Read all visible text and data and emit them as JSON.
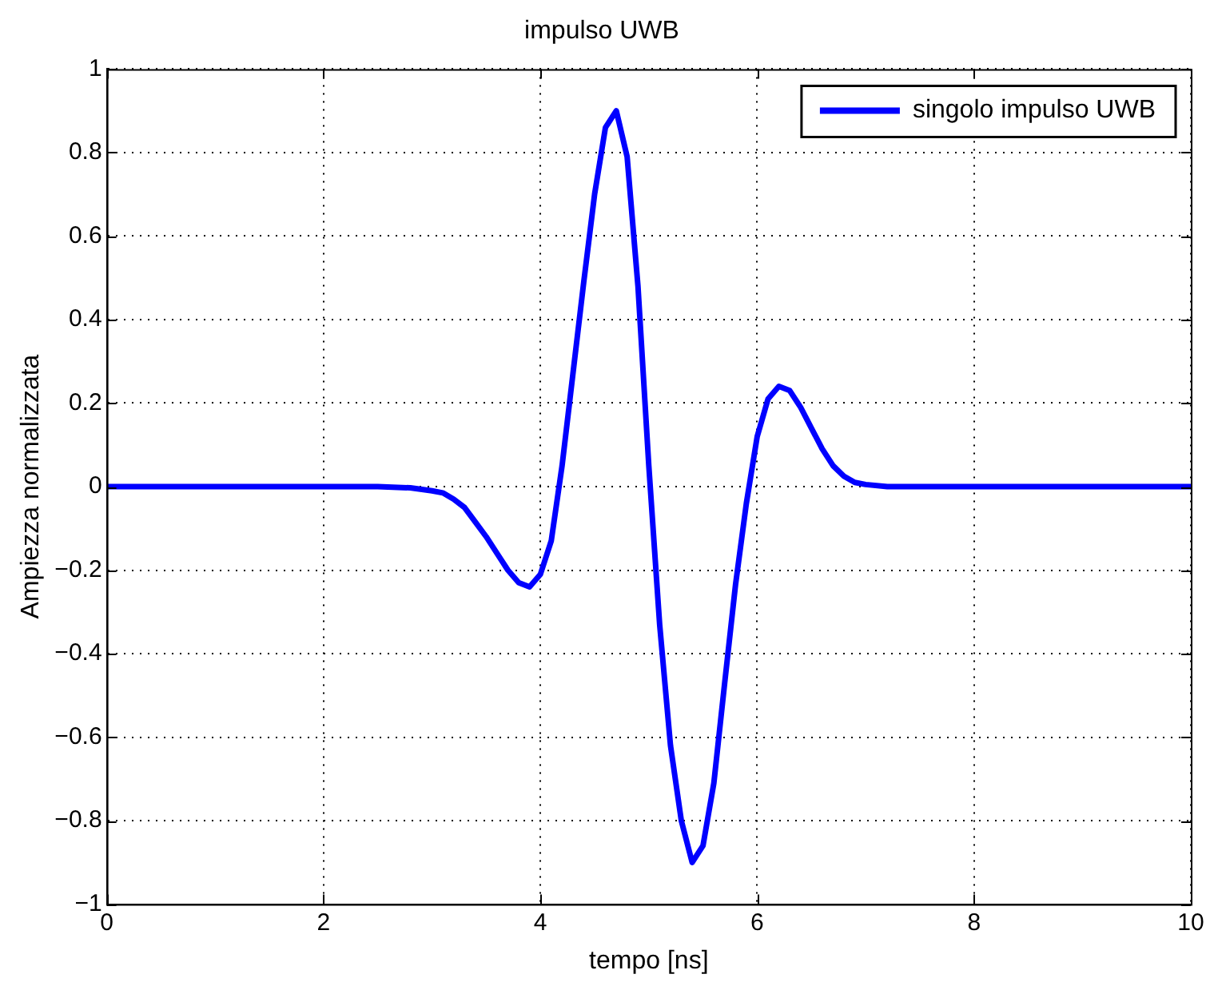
{
  "chart_data": {
    "type": "line",
    "title": "impulso UWB",
    "xlabel": "tempo [ns]",
    "ylabel": "Ampiezza normalizzata",
    "xlim": [
      0,
      10
    ],
    "xticks": [
      0,
      2,
      4,
      6,
      8,
      10
    ],
    "ylim": [
      -1,
      1
    ],
    "yticks": [
      -1,
      -0.8,
      -0.6,
      -0.4,
      -0.2,
      0,
      0.2,
      0.4,
      0.6,
      0.8,
      1
    ],
    "grid": true,
    "legend": "top right",
    "marker": "none",
    "line_style": "solid",
    "series": [
      {
        "name": "singolo impulso UWB",
        "color": "#0000ff",
        "x": [
          0,
          1,
          2,
          2.5,
          2.8,
          3.0,
          3.1,
          3.2,
          3.3,
          3.4,
          3.5,
          3.6,
          3.7,
          3.8,
          3.9,
          4.0,
          4.1,
          4.2,
          4.3,
          4.4,
          4.5,
          4.6,
          4.7,
          4.8,
          4.9,
          5.0,
          5.1,
          5.2,
          5.3,
          5.4,
          5.5,
          5.6,
          5.7,
          5.8,
          5.9,
          6.0,
          6.1,
          6.2,
          6.3,
          6.4,
          6.5,
          6.6,
          6.7,
          6.8,
          6.9,
          7.0,
          7.2,
          7.5,
          8,
          9,
          10
        ],
        "values": [
          0,
          0,
          0,
          0,
          -0.003,
          -0.01,
          -0.015,
          -0.03,
          -0.05,
          -0.085,
          -0.12,
          -0.16,
          -0.2,
          -0.23,
          -0.24,
          -0.21,
          -0.13,
          0.05,
          0.27,
          0.49,
          0.7,
          0.86,
          0.9,
          0.79,
          0.48,
          0.05,
          -0.33,
          -0.62,
          -0.8,
          -0.9,
          -0.86,
          -0.71,
          -0.47,
          -0.235,
          -0.04,
          0.12,
          0.21,
          0.24,
          0.23,
          0.19,
          0.14,
          0.09,
          0.05,
          0.025,
          0.01,
          0.005,
          0,
          0,
          0,
          0,
          0
        ]
      }
    ]
  }
}
